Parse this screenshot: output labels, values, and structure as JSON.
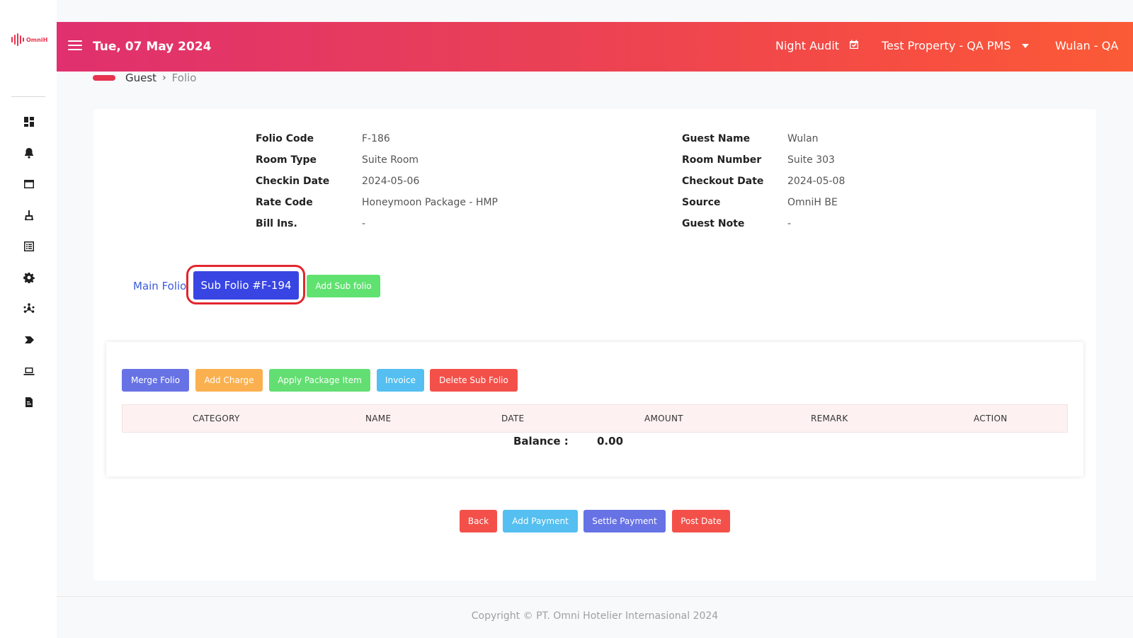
{
  "app": {
    "logo_text": "OmniH",
    "brand_color": "#e8334f"
  },
  "topbar": {
    "date": "Tue, 07 May 2024",
    "night_audit": "Night Audit",
    "property": "Test Property - QA PMS",
    "user": "Wulan - QA"
  },
  "sidebar": {
    "items": [
      {
        "icon": "dashboard-icon"
      },
      {
        "icon": "bell-icon"
      },
      {
        "icon": "window-icon"
      },
      {
        "icon": "broom-icon"
      },
      {
        "icon": "list-icon"
      },
      {
        "icon": "gear-icon"
      },
      {
        "icon": "network-icon"
      },
      {
        "icon": "tag-icon"
      },
      {
        "icon": "laptop-icon"
      },
      {
        "icon": "report-icon"
      }
    ]
  },
  "breadcrumb": {
    "guest": "Guest",
    "separator": "›",
    "current": "Folio"
  },
  "folio_info": {
    "left": [
      {
        "label": "Folio Code",
        "value": "F-186"
      },
      {
        "label": "Room Type",
        "value": "Suite Room"
      },
      {
        "label": "Checkin Date",
        "value": "2024-05-06"
      },
      {
        "label": "Rate Code",
        "value": "Honeymoon Package - HMP"
      },
      {
        "label": "Bill Ins.",
        "value": "-"
      }
    ],
    "right": [
      {
        "label": "Guest Name",
        "value": "Wulan"
      },
      {
        "label": "Room Number",
        "value": "Suite 303"
      },
      {
        "label": "Checkout Date",
        "value": "2024-05-08"
      },
      {
        "label": "Source",
        "value": "OmniH BE"
      },
      {
        "label": "Guest Note",
        "value": "-"
      }
    ]
  },
  "folio_tabs": {
    "main": "Main Folio",
    "sub": "Sub Folio #F-194",
    "add_sub": "Add Sub folio"
  },
  "toolbar": {
    "merge": "Merge Folio",
    "add_charge": "Add Charge",
    "apply_package": "Apply Package Item",
    "invoice": "Invoice",
    "delete_sub": "Delete Sub Folio"
  },
  "table": {
    "columns": [
      "CATEGORY",
      "NAME",
      "DATE",
      "AMOUNT",
      "REMARK",
      "ACTION"
    ],
    "balance_label": "Balance :",
    "balance_value": "0.00"
  },
  "bottom_actions": {
    "back": "Back",
    "add_payment": "Add Payment",
    "settle_payment": "Settle Payment",
    "post_date": "Post Date"
  },
  "footer": {
    "copyright": "Copyright © PT. Omni Hotelier Internasional 2024"
  }
}
